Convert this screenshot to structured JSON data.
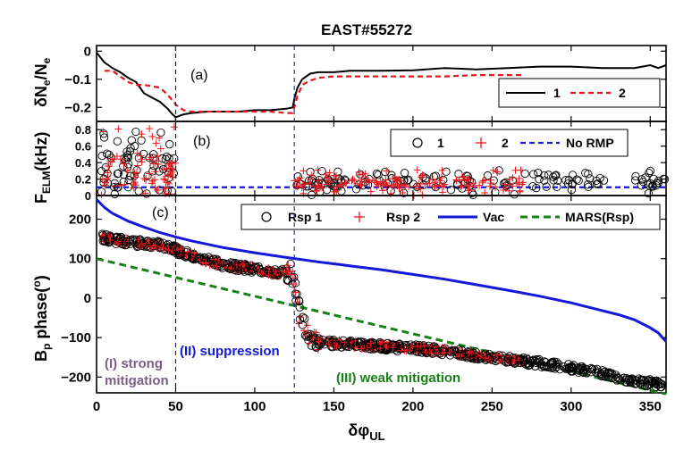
{
  "figure": {
    "title": "EAST#55272",
    "xlabel_main": "δφ",
    "xlabel_sub": "UL",
    "xticks": [
      "0",
      "50",
      "100",
      "150",
      "200",
      "250",
      "300",
      "350"
    ],
    "colors": {
      "black": "#000000",
      "red": "#e8161b",
      "blue": "#1419d8",
      "green": "#168216",
      "purple": "#7d5d8a"
    }
  },
  "chart_data": [
    {
      "type": "line",
      "panel_label": "(a)",
      "ylabel": "δN_e/N_e",
      "ylabel_parts": {
        "base1": "δN",
        "sub1": "e",
        "sep": "/N",
        "sub2": "e"
      },
      "xlim": [
        0,
        360
      ],
      "ylim": [
        -0.25,
        0.02
      ],
      "yticks": [
        "0",
        "−0.1",
        "−0.2"
      ],
      "legend": [
        "1",
        "2"
      ],
      "series": [
        {
          "name": "1",
          "style": "solid",
          "color": "#000000",
          "x": [
            0,
            5,
            10,
            15,
            20,
            25,
            30,
            35,
            40,
            45,
            48,
            50,
            55,
            60,
            70,
            80,
            90,
            100,
            110,
            120,
            124,
            125,
            127,
            130,
            135,
            140,
            150,
            160,
            170,
            180,
            200,
            220,
            240,
            260,
            280,
            300,
            320,
            340,
            350,
            355,
            360
          ],
          "y": [
            -0.005,
            -0.04,
            -0.06,
            -0.075,
            -0.095,
            -0.11,
            -0.15,
            -0.165,
            -0.18,
            -0.205,
            -0.225,
            -0.235,
            -0.225,
            -0.22,
            -0.215,
            -0.215,
            -0.215,
            -0.21,
            -0.21,
            -0.205,
            -0.2,
            -0.17,
            -0.13,
            -0.1,
            -0.08,
            -0.075,
            -0.075,
            -0.07,
            -0.07,
            -0.07,
            -0.068,
            -0.06,
            -0.065,
            -0.06,
            -0.055,
            -0.055,
            -0.06,
            -0.06,
            -0.05,
            -0.06,
            -0.05
          ]
        },
        {
          "name": "2",
          "style": "dashed",
          "color": "#e8161b",
          "x": [
            5,
            10,
            15,
            20,
            25,
            30,
            35,
            40,
            45,
            50,
            55,
            60,
            70,
            80,
            90,
            100,
            110,
            120,
            124,
            127,
            130,
            135,
            140,
            150,
            160,
            180,
            200,
            220,
            240,
            260,
            270
          ],
          "y": [
            -0.07,
            -0.07,
            -0.09,
            -0.11,
            -0.12,
            -0.12,
            -0.125,
            -0.13,
            -0.155,
            -0.19,
            -0.21,
            -0.215,
            -0.215,
            -0.215,
            -0.215,
            -0.215,
            -0.215,
            -0.22,
            -0.22,
            -0.16,
            -0.12,
            -0.105,
            -0.095,
            -0.09,
            -0.09,
            -0.09,
            -0.09,
            -0.09,
            -0.085,
            -0.085,
            -0.085
          ]
        }
      ]
    },
    {
      "type": "scatter",
      "panel_label": "(b)",
      "ylabel": "F_ELM(kHz)",
      "ylabel_parts": {
        "base": "F",
        "sub": "ELM",
        "rest": "(kHz)"
      },
      "xlim": [
        0,
        360
      ],
      "ylim": [
        0,
        0.9
      ],
      "yticks": [
        "0",
        "0.2",
        "0.4",
        "0.6",
        "0.8"
      ],
      "legend": [
        "1",
        "2",
        "No RMP"
      ],
      "bands": [
        {
          "name": "1",
          "marker": "circle",
          "color": "#000000",
          "segments": [
            {
              "x": [
                3,
                50
              ],
              "y_low": 0.15,
              "y_mid": 0.45,
              "y_high": 0.8,
              "n": 70
            },
            {
              "x": [
                125,
                360
              ],
              "y_low": 0.1,
              "y_mid": 0.18,
              "y_high": 0.32,
              "n": 150
            }
          ]
        },
        {
          "name": "2",
          "marker": "plus",
          "color": "#e8161b",
          "segments": [
            {
              "x": [
                3,
                50
              ],
              "y_low": 0.12,
              "y_mid": 0.38,
              "y_high": 0.88,
              "n": 80
            },
            {
              "x": [
                125,
                270
              ],
              "y_low": 0.1,
              "y_mid": 0.18,
              "y_high": 0.32,
              "n": 160
            }
          ]
        }
      ],
      "series": [
        {
          "name": "No RMP",
          "style": "dashed",
          "color": "#1419d8",
          "x": [
            0,
            360
          ],
          "y": [
            0.1,
            0.1
          ]
        }
      ]
    },
    {
      "type": "line",
      "panel_label": "(c)",
      "ylabel": "B_p phase(o)",
      "ylabel_parts": {
        "base": "B",
        "sub": "p",
        "rest": " phase(",
        "sup": "o",
        "end": ")"
      },
      "xlim": [
        0,
        360
      ],
      "ylim": [
        -240,
        260
      ],
      "yticks": [
        "200",
        "100",
        "0",
        "−100",
        "−200"
      ],
      "legend": [
        "Rsp 1",
        "Rsp 2",
        "Vac",
        "MARS(Rsp)"
      ],
      "series": [
        {
          "name": "Vac",
          "style": "solid",
          "color": "#1419d8",
          "x": [
            0,
            5,
            10,
            20,
            30,
            40,
            50,
            60,
            80,
            100,
            120,
            140,
            160,
            180,
            200,
            220,
            240,
            260,
            280,
            300,
            320,
            330,
            340,
            350,
            355,
            360
          ],
          "y": [
            250,
            230,
            215,
            195,
            180,
            166,
            155,
            145,
            128,
            115,
            103,
            92,
            82,
            72,
            60,
            48,
            34,
            20,
            5,
            -12,
            -32,
            -42,
            -55,
            -75,
            -88,
            -110
          ]
        },
        {
          "name": "MARS(Rsp)",
          "style": "dashed",
          "color": "#168216",
          "x": [
            0,
            360
          ],
          "y": [
            100,
            -243
          ]
        }
      ],
      "scatter_x": [
        3,
        6,
        10,
        14,
        18,
        22,
        26,
        30,
        34,
        38,
        42,
        46,
        50,
        55,
        60,
        65,
        70,
        75,
        80,
        85,
        90,
        95,
        100,
        105,
        110,
        115,
        120,
        122,
        124,
        126,
        128,
        130,
        133,
        136,
        140,
        150,
        160,
        170,
        180,
        190,
        200,
        210,
        220,
        230,
        240,
        250,
        260,
        270,
        280,
        290,
        300,
        310,
        320,
        330,
        340,
        350,
        358
      ],
      "scatter_y": [
        155,
        152,
        148,
        146,
        143,
        141,
        140,
        139,
        137,
        135,
        133,
        130,
        122,
        115,
        108,
        100,
        95,
        90,
        85,
        82,
        78,
        76,
        72,
        70,
        66,
        64,
        66,
        72,
        60,
        20,
        -30,
        -60,
        -85,
        -100,
        -110,
        -115,
        -117,
        -120,
        -122,
        -125,
        -127,
        -130,
        -135,
        -140,
        -145,
        -150,
        -155,
        -160,
        -165,
        -170,
        -177,
        -185,
        -192,
        -200,
        -208,
        -215,
        -222
      ],
      "scatter_spread": 10,
      "scatter_points_per_unit": 2.2,
      "rsp2_x_max": 270,
      "regions": [
        {
          "label_lines": [
            "(I) strong",
            "mitigation"
          ],
          "color": "#7d5d8a"
        },
        {
          "label_lines": [
            "(II) suppression"
          ],
          "color": "#1419d8"
        },
        {
          "label_lines": [
            "(III) weak mitigation"
          ],
          "color": "#168216"
        }
      ]
    }
  ],
  "vlines": [
    {
      "x": 50,
      "color": "#1a1a1a"
    },
    {
      "x": 125,
      "color": "#1419d8"
    }
  ]
}
